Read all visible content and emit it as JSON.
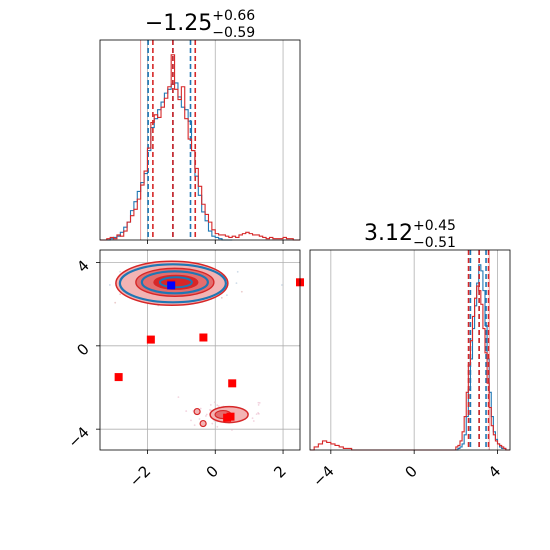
{
  "chart_data": [
    {
      "type": "histogram",
      "panel": "marginal-param-1",
      "title_value": "−1.25",
      "title_upper": "+0.66",
      "title_lower": "−0.59",
      "xlim": [
        -3.4,
        2.5
      ],
      "x_ticks": [
        -2,
        0,
        2
      ],
      "show_tick_labels": false,
      "grid": true,
      "truth_line": -2.2,
      "series": [
        {
          "color": "#1f77b4",
          "edges": [
            -3.4,
            -3.3,
            -3.2,
            -3.1,
            -3.0,
            -2.9,
            -2.8,
            -2.7,
            -2.6,
            -2.5,
            -2.4,
            -2.3,
            -2.2,
            -2.1,
            -2.0,
            -1.9,
            -1.8,
            -1.7,
            -1.6,
            -1.5,
            -1.4,
            -1.3,
            -1.2,
            -1.1,
            -1.0,
            -0.9,
            -0.8,
            -0.7,
            -0.6,
            -0.5,
            -0.4,
            -0.3,
            -0.2,
            -0.1,
            0.0,
            0.1,
            0.2,
            0.3,
            0.4,
            0.5
          ],
          "counts": [
            0,
            0,
            0,
            1,
            2,
            3,
            6,
            10,
            14,
            23,
            30,
            38,
            45,
            52,
            70,
            88,
            95,
            102,
            108,
            115,
            118,
            122,
            123,
            112,
            104,
            102,
            93,
            70,
            50,
            35,
            22,
            15,
            7,
            3,
            2,
            1,
            0,
            0,
            0
          ],
          "quantiles": [
            -1.98,
            -1.25,
            -0.73
          ]
        },
        {
          "color": "#d62728",
          "edges": [
            -3.4,
            -3.3,
            -3.2,
            -3.1,
            -3.0,
            -2.9,
            -2.8,
            -2.7,
            -2.6,
            -2.5,
            -2.4,
            -2.3,
            -2.2,
            -2.1,
            -2.0,
            -1.9,
            -1.8,
            -1.7,
            -1.6,
            -1.5,
            -1.4,
            -1.3,
            -1.2,
            -1.1,
            -1.0,
            -0.9,
            -0.8,
            -0.7,
            -0.6,
            -0.5,
            -0.4,
            -0.3,
            -0.2,
            -0.1,
            0.0,
            0.1,
            0.2,
            0.3,
            0.4,
            0.5,
            0.6,
            0.7,
            0.8,
            0.9,
            1.0,
            1.1,
            1.2,
            1.3,
            1.4,
            1.5,
            1.6,
            1.7,
            1.8,
            1.9,
            2.0,
            2.1,
            2.2,
            2.3,
            2.4,
            2.5
          ],
          "counts": [
            0,
            0,
            1,
            2,
            1,
            4,
            3,
            7,
            14,
            19,
            24,
            32,
            43,
            54,
            72,
            92,
            98,
            96,
            104,
            111,
            120,
            145,
            118,
            110,
            120,
            95,
            79,
            70,
            56,
            42,
            28,
            20,
            14,
            8,
            5,
            4,
            4,
            3,
            2,
            3,
            2,
            4,
            5,
            6,
            5,
            4,
            4,
            3,
            2,
            1,
            2,
            1,
            1,
            1,
            2,
            1,
            1,
            0,
            0
          ],
          "quantiles": [
            -1.84,
            -1.25,
            -0.59
          ]
        }
      ]
    },
    {
      "type": "contour",
      "panel": "joint-param-1-param-2",
      "xlim": [
        -3.4,
        2.5
      ],
      "ylim": [
        -5.0,
        4.6
      ],
      "x_ticks": [
        -2,
        0,
        2
      ],
      "y_ticks": [
        -4,
        0,
        4
      ],
      "x_tick_labels": [
        "−2",
        "0",
        "2"
      ],
      "y_tick_labels": [
        "−4",
        "0",
        "4"
      ],
      "grid": true,
      "blue_marker": {
        "x": -1.3,
        "y": 2.9
      },
      "red_markers": [
        {
          "x": -1.3,
          "y": 2.95
        },
        {
          "x": -1.9,
          "y": 0.3
        },
        {
          "x": -0.35,
          "y": 0.4
        },
        {
          "x": -2.85,
          "y": -1.5
        },
        {
          "x": 0.5,
          "y": -1.8
        },
        {
          "x": 0.45,
          "y": -3.4
        },
        {
          "x": 0.35,
          "y": -3.45
        },
        {
          "x": 2.5,
          "y": 3.05
        }
      ]
    },
    {
      "type": "histogram",
      "panel": "marginal-param-2",
      "title_value": "3.12",
      "title_upper": "+0.45",
      "title_lower": "−0.51",
      "xlim": [
        -5.0,
        4.6
      ],
      "x_ticks": [
        -4,
        0,
        4
      ],
      "x_tick_labels": [
        "−4",
        "0",
        "4"
      ],
      "grid": true,
      "truth_line": 3.6,
      "series": [
        {
          "color": "#1f77b4",
          "edges": [
            2.0,
            2.1,
            2.2,
            2.3,
            2.4,
            2.5,
            2.6,
            2.7,
            2.8,
            2.9,
            3.0,
            3.1,
            3.2,
            3.3,
            3.4,
            3.5,
            3.6,
            3.7,
            3.8,
            3.9,
            4.0,
            4.1,
            4.2,
            4.3,
            4.4,
            4.5,
            4.6
          ],
          "counts": [
            0,
            1,
            2,
            4,
            10,
            22,
            40,
            60,
            80,
            95,
            110,
            122,
            118,
            105,
            82,
            60,
            38,
            22,
            12,
            7,
            4,
            2,
            1,
            1,
            0,
            0
          ],
          "quantiles": [
            2.7,
            3.12,
            3.45
          ]
        },
        {
          "color": "#d62728",
          "edges": [
            -5.0,
            -4.8,
            -4.6,
            -4.4,
            -4.2,
            -4.0,
            -3.8,
            -3.6,
            -3.4,
            -3.2,
            -3.0,
            2.0,
            2.1,
            2.2,
            2.3,
            2.4,
            2.5,
            2.6,
            2.7,
            2.8,
            2.9,
            3.0,
            3.1,
            3.2,
            3.3,
            3.4,
            3.5,
            3.6,
            3.7,
            3.8,
            3.9,
            4.0,
            4.1,
            4.2,
            4.3,
            4.4,
            4.5,
            4.6
          ],
          "counts": [
            0,
            2,
            4,
            6,
            5,
            4,
            3,
            2,
            1,
            1,
            0,
            2,
            3,
            6,
            12,
            22,
            38,
            56,
            72,
            88,
            100,
            108,
            105,
            96,
            80,
            64,
            44,
            28,
            16,
            10,
            6,
            4,
            3,
            2,
            1,
            0,
            0
          ],
          "quantiles": [
            2.61,
            3.12,
            3.57
          ]
        }
      ]
    }
  ]
}
